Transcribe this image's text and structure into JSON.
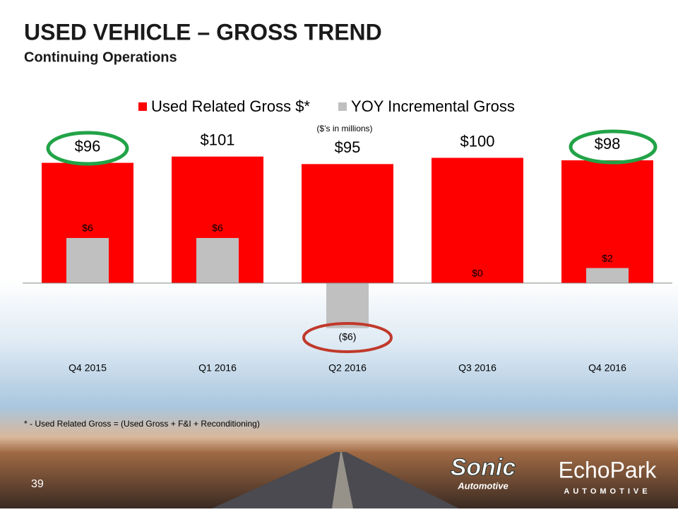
{
  "chart_data": {
    "type": "bar",
    "title": "USED VEHICLE – GROSS TREND",
    "subtitle": "Continuing Operations",
    "note": "($’s in millions)",
    "footnote": "* - Used Related Gross  = (Used Gross + F&I + Reconditioning)",
    "categories": [
      "Q4 2015",
      "Q1 2016",
      "Q2 2016",
      "Q3 2016",
      "Q4 2016"
    ],
    "series": [
      {
        "name": "Used Related Gross $*",
        "color": "#ff0000",
        "axis": "y2",
        "values": [
          96,
          101,
          95,
          100,
          98
        ],
        "value_labels": [
          "$96",
          "$101",
          "$95",
          "$100",
          "$98"
        ]
      },
      {
        "name": "YOY Incremental Gross",
        "color": "#c0c0c0",
        "values": [
          6,
          6,
          -6,
          0,
          2
        ],
        "value_labels": [
          "$6",
          "$6",
          "($6)",
          "$0",
          "$2"
        ]
      }
    ],
    "ylim": [
      -8,
      20
    ],
    "y2lim": [
      -48,
      120
    ],
    "legend": "top"
  },
  "page_number": "39",
  "logos": {
    "sonic": [
      "Sonic",
      "Automotive"
    ],
    "echopark": [
      "EchoPark",
      "AUTOMOTIVE"
    ]
  }
}
